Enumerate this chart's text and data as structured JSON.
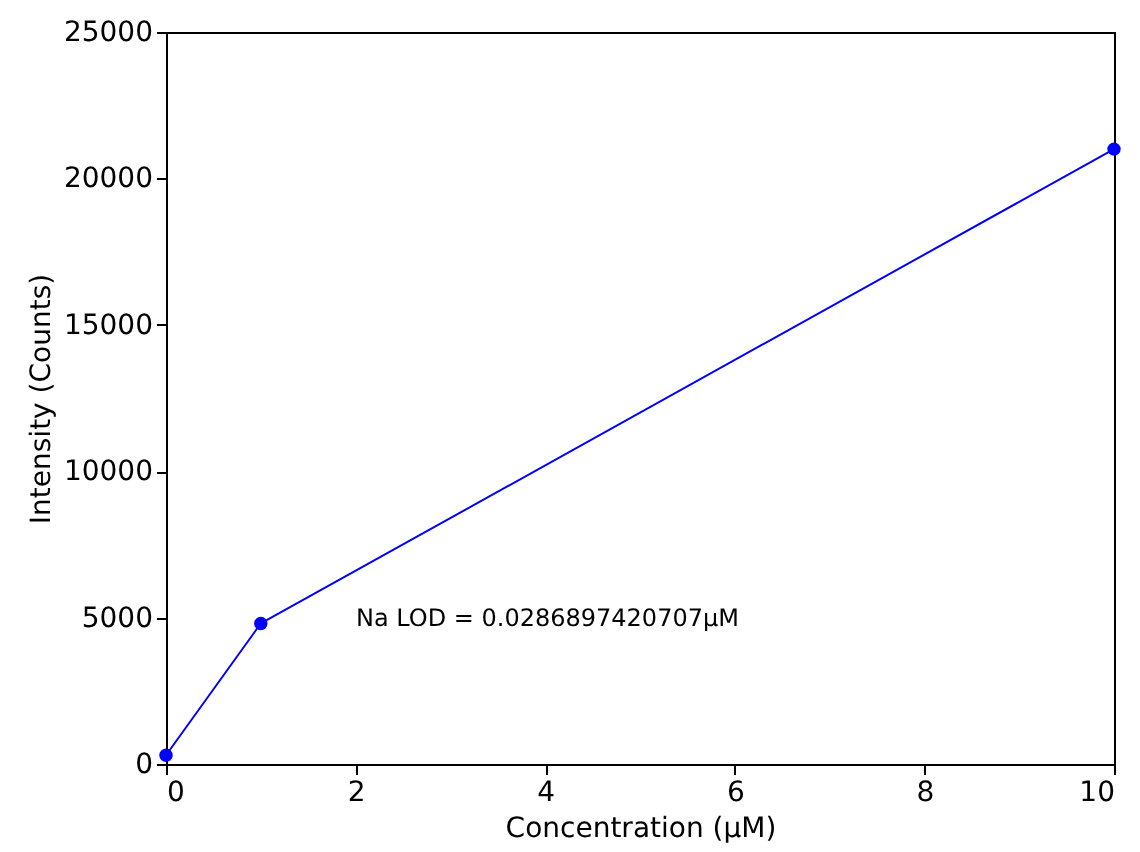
{
  "chart_data": {
    "type": "line",
    "xlabel": "Concentration (μM)",
    "ylabel": "Intensity (Counts)",
    "x": [
      0,
      1,
      10
    ],
    "series": [
      {
        "color": "#0000ff",
        "values": [
          300,
          4800,
          21000
        ]
      }
    ],
    "xlim": [
      0,
      10
    ],
    "xticks": [
      0,
      2,
      4,
      6,
      8,
      10
    ],
    "ylim": [
      0,
      25000
    ],
    "yticks": [
      0,
      5000,
      10000,
      15000,
      20000,
      25000
    ],
    "marker": "circle",
    "line_style": "solid",
    "grid": false,
    "annotations": [
      "Na LOD = 0.0286897420707μM"
    ]
  }
}
